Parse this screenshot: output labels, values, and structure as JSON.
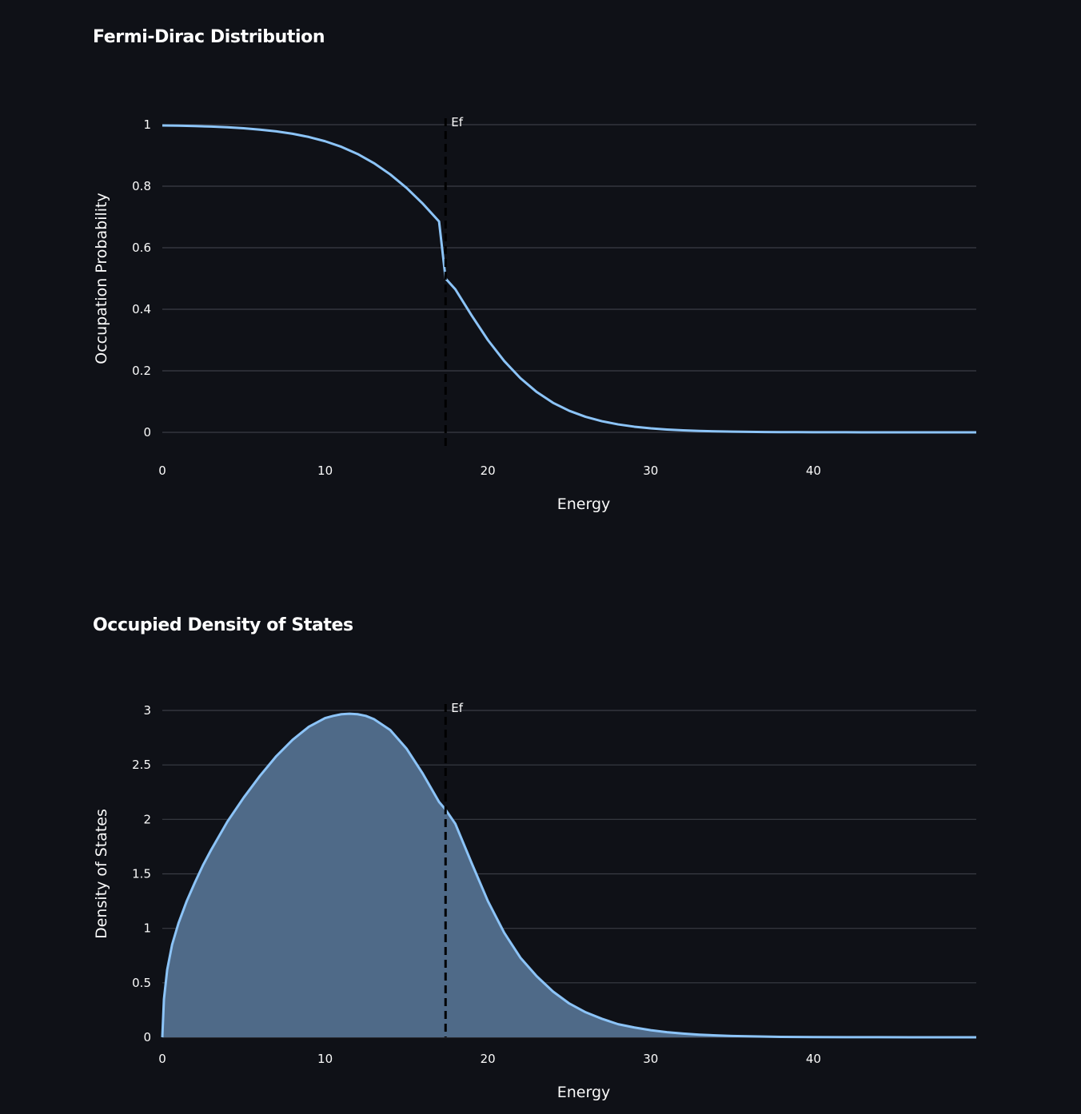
{
  "chart_data": [
    {
      "type": "line",
      "title": "Fermi-Dirac Distribution",
      "xlabel": "Energy",
      "ylabel": "Occupation Probability",
      "xlim": [
        0,
        50
      ],
      "ylim": [
        0,
        1
      ],
      "x_ticks": [
        "0",
        "10",
        "20",
        "30",
        "40"
      ],
      "y_ticks": [
        "0",
        "0.2",
        "0.4",
        "0.6",
        "0.8",
        "1"
      ],
      "grid": true,
      "line_color": "#8cc4f8",
      "rule": {
        "x": 17.4,
        "label": "Ef"
      },
      "x": [
        0,
        1,
        2,
        3,
        4,
        5,
        6,
        7,
        8,
        9,
        10,
        11,
        12,
        13,
        14,
        15,
        16,
        17,
        17.4,
        18,
        19,
        20,
        21,
        22,
        23,
        24,
        25,
        26,
        27,
        28,
        29,
        30,
        31,
        32,
        33,
        34,
        35,
        36,
        37,
        38,
        39,
        40,
        41,
        42,
        43,
        44,
        45,
        46,
        47,
        48,
        49,
        50
      ],
      "y": [
        0.9975,
        0.9966,
        0.9953,
        0.9937,
        0.9914,
        0.9882,
        0.9839,
        0.9782,
        0.9704,
        0.96,
        0.9461,
        0.928,
        0.9046,
        0.875,
        0.8385,
        0.7946,
        0.7433,
        0.6855,
        0.5,
        0.465,
        0.38,
        0.3,
        0.232,
        0.176,
        0.131,
        0.096,
        0.07,
        0.0505,
        0.0362,
        0.0258,
        0.0183,
        0.013,
        0.0092,
        0.0065,
        0.0046,
        0.0032,
        0.0023,
        0.0016,
        0.0011,
        0.0008,
        0.0006,
        0.0004,
        0.0003,
        0.0002,
        0.0001,
        0.0001,
        0.0001,
        0.0,
        0.0,
        0.0,
        0.0,
        0.0
      ]
    },
    {
      "type": "area",
      "title": "Occupied Density of States",
      "xlabel": "Energy",
      "ylabel": "Density of States",
      "xlim": [
        0,
        50
      ],
      "ylim": [
        0,
        3
      ],
      "x_ticks": [
        "0",
        "10",
        "20",
        "30",
        "40"
      ],
      "y_ticks": [
        "0",
        "0.5",
        "1",
        "1.5",
        "2",
        "2.5",
        "3"
      ],
      "grid": true,
      "line_color": "#8cc4f8",
      "fill_color": "#4f6a88",
      "rule": {
        "x": 17.4,
        "label": "Ef"
      },
      "x": [
        0,
        0.1,
        0.3,
        0.6,
        1,
        1.5,
        2,
        2.5,
        3,
        4,
        5,
        6,
        7,
        8,
        9,
        10,
        10.5,
        11,
        11.5,
        12,
        12.5,
        13,
        14,
        15,
        16,
        17,
        17.4,
        18,
        19,
        20,
        21,
        22,
        23,
        24,
        25,
        26,
        27,
        28,
        29,
        30,
        31,
        32,
        33,
        34,
        35,
        36,
        37,
        38,
        40,
        42,
        44,
        46,
        48,
        50
      ],
      "y": [
        0,
        0.35,
        0.62,
        0.85,
        1.05,
        1.25,
        1.42,
        1.58,
        1.72,
        1.98,
        2.2,
        2.4,
        2.58,
        2.73,
        2.85,
        2.93,
        2.95,
        2.965,
        2.97,
        2.965,
        2.95,
        2.92,
        2.82,
        2.65,
        2.42,
        2.16,
        2.09,
        1.96,
        1.6,
        1.25,
        0.96,
        0.73,
        0.56,
        0.42,
        0.31,
        0.23,
        0.17,
        0.12,
        0.09,
        0.065,
        0.047,
        0.034,
        0.024,
        0.017,
        0.012,
        0.009,
        0.006,
        0.004,
        0.002,
        0.001,
        0.0005,
        0.0002,
        0.0001,
        0.0
      ]
    }
  ]
}
